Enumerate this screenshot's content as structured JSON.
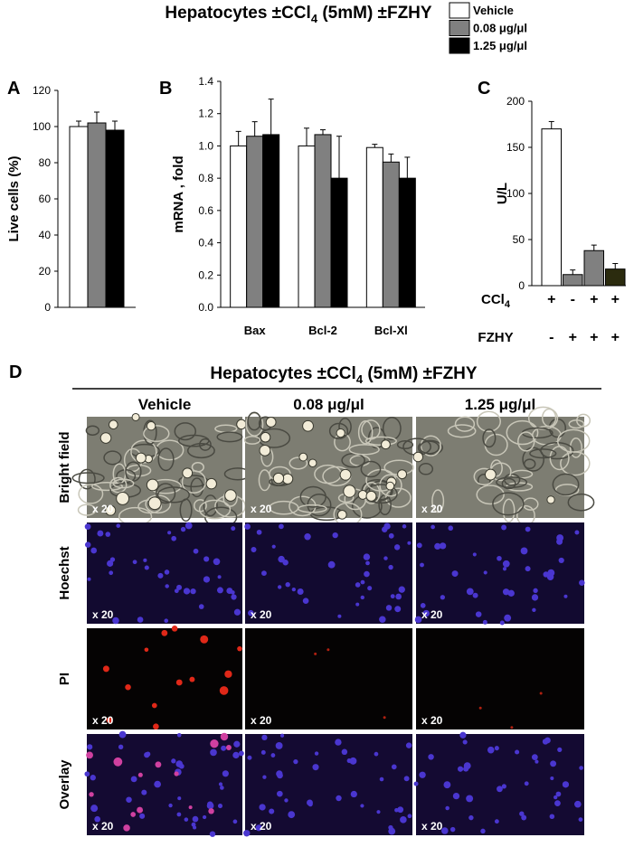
{
  "header": {
    "title_parts": [
      "Hepatocytes ±CCl",
      "4",
      " (5mM) ±FZHY"
    ]
  },
  "legend": [
    {
      "name": "Vehicle",
      "color": "#ffffff"
    },
    {
      "name": "0.08 μg/μl",
      "color": "#808080"
    },
    {
      "name": "1.25 μg/μl",
      "color": "#000000"
    }
  ],
  "chart_data": [
    {
      "type": "bar",
      "panel": "A",
      "y_label": "Live cells (%)",
      "ylim": [
        0,
        120
      ],
      "yticks": [
        0,
        20,
        40,
        60,
        80,
        100,
        120
      ],
      "categories": [
        null
      ],
      "series": [
        {
          "color": "#ffffff",
          "values": [
            100
          ],
          "errors": [
            3
          ]
        },
        {
          "color": "#808080",
          "values": [
            102
          ],
          "errors": [
            6
          ]
        },
        {
          "color": "#000000",
          "values": [
            98
          ],
          "errors": [
            5
          ]
        }
      ]
    },
    {
      "type": "bar",
      "panel": "B",
      "y_label": "mRNA , fold",
      "ylim": [
        0,
        1.4
      ],
      "yticks": [
        {
          "value": 0,
          "label": "0.0"
        },
        0.2,
        0.4,
        0.6,
        0.8,
        {
          "value": 1,
          "label": "1.0"
        },
        1.2,
        1.4
      ],
      "categories": [
        "Bax",
        "Bcl-2",
        "Bcl-Xl"
      ],
      "series": [
        {
          "color": "#ffffff",
          "values": [
            1.0,
            1.0,
            0.99
          ],
          "errors": [
            0.09,
            0.11,
            0.02
          ]
        },
        {
          "color": "#808080",
          "values": [
            1.06,
            1.07,
            0.9
          ],
          "errors": [
            0.09,
            0.03,
            0.05
          ]
        },
        {
          "color": "#000000",
          "values": [
            1.07,
            0.8,
            0.8
          ],
          "errors": [
            0.22,
            0.26,
            0.13
          ]
        }
      ]
    },
    {
      "type": "bar",
      "panel": "C",
      "y_label": "U/L",
      "ylim": [
        0,
        200
      ],
      "yticks": [
        0,
        50,
        100,
        150,
        200
      ],
      "values": [
        170,
        12,
        38,
        18
      ],
      "errors": [
        8,
        5,
        6,
        6
      ],
      "colors": [
        "#ffffff",
        "#808080",
        "#808080",
        "#2b2b0e"
      ],
      "rows": [
        {
          "label": "CCl",
          "sub": "4",
          "signs": [
            "+",
            "-",
            "+",
            "+"
          ]
        },
        {
          "label": "FZHY",
          "signs": [
            "-",
            "+",
            "+",
            "+"
          ]
        }
      ]
    }
  ],
  "panel_d": {
    "panel": "D",
    "title_parts": [
      "Hepatocytes ±CCl",
      "4",
      " (5mM) ±FZHY"
    ],
    "columns": [
      "Vehicle",
      "0.08 μg/μl",
      "1.25 μg/μl"
    ],
    "rows": [
      "Bright field",
      "Hoechst",
      "PI",
      "Overlay"
    ],
    "magnification": "x 20"
  }
}
